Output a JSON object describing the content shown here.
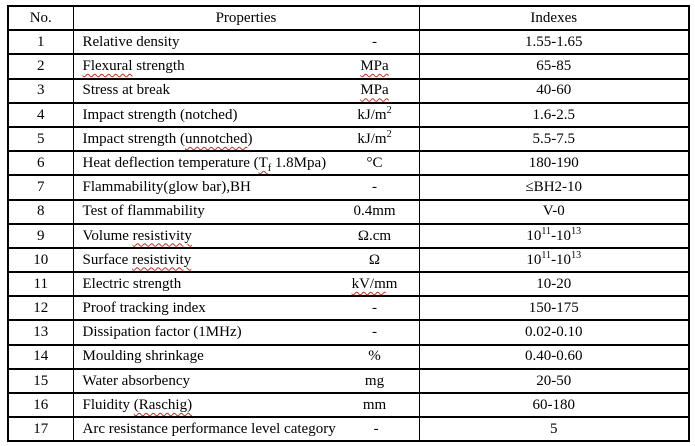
{
  "colors": {
    "border": "#000000",
    "text": "#000000",
    "spellcheck_squiggle": "#cc2a1e",
    "background": "#ffffff"
  },
  "table": {
    "headers": {
      "no": "No.",
      "properties": "Properties",
      "indexes": "Indexes"
    },
    "rows": [
      {
        "no": "1",
        "name": [
          {
            "t": "Relative density"
          }
        ],
        "unit": [
          {
            "t": "-"
          }
        ],
        "index": [
          {
            "t": "1.55-1.65"
          }
        ]
      },
      {
        "no": "2",
        "name": [
          {
            "t": "Flexural",
            "sq": true
          },
          {
            "t": " strength"
          }
        ],
        "unit": [
          {
            "t": "MPa",
            "sq": true
          }
        ],
        "index": [
          {
            "t": "65-85"
          }
        ]
      },
      {
        "no": "3",
        "name": [
          {
            "t": "Stress at break"
          }
        ],
        "unit": [
          {
            "t": "MPa",
            "sq": true
          }
        ],
        "index": [
          {
            "t": "40-60"
          }
        ]
      },
      {
        "no": "4",
        "name": [
          {
            "t": "Impact strength (notched)"
          }
        ],
        "unit": [
          {
            "t": "kJ/m"
          },
          {
            "t": "2",
            "sup": true
          }
        ],
        "index": [
          {
            "t": "1.6-2.5"
          }
        ]
      },
      {
        "no": "5",
        "name": [
          {
            "t": "Impact strength ("
          },
          {
            "t": "unnotched",
            "sq": true
          },
          {
            "t": ")"
          }
        ],
        "unit": [
          {
            "t": "kJ/m"
          },
          {
            "t": "2",
            "sup": true
          }
        ],
        "index": [
          {
            "t": "5.5-7.5"
          }
        ]
      },
      {
        "no": "6",
        "name": [
          {
            "t": "Heat deflection temperature ("
          },
          {
            "t": "T",
            "sq": true
          },
          {
            "t": "f",
            "sub": true,
            "sq": true
          },
          {
            "t": " 1.8Mpa)"
          }
        ],
        "unit": [
          {
            "t": "°C"
          }
        ],
        "index": [
          {
            "t": "180-190"
          }
        ]
      },
      {
        "no": "7",
        "name": [
          {
            "t": "Flammability(glow bar),BH"
          }
        ],
        "unit": [
          {
            "t": "-"
          }
        ],
        "index": [
          {
            "t": "≤BH2-10"
          }
        ]
      },
      {
        "no": "8",
        "name": [
          {
            "t": "Test of flammability"
          }
        ],
        "unit": [
          {
            "t": "0.4mm"
          }
        ],
        "index": [
          {
            "t": "V-0"
          }
        ]
      },
      {
        "no": "9",
        "name": [
          {
            "t": "Volume "
          },
          {
            "t": "resistivity",
            "sq": true
          }
        ],
        "unit": [
          {
            "t": "Ω.cm"
          }
        ],
        "index": [
          {
            "t": "10"
          },
          {
            "t": "11",
            "sup": true
          },
          {
            "t": "-10"
          },
          {
            "t": "13",
            "sup": true
          }
        ]
      },
      {
        "no": "10",
        "name": [
          {
            "t": "Surface "
          },
          {
            "t": "resistivity",
            "sq": true
          }
        ],
        "unit": [
          {
            "t": "Ω"
          }
        ],
        "index": [
          {
            "t": "10"
          },
          {
            "t": "11",
            "sup": true
          },
          {
            "t": "-10"
          },
          {
            "t": "13",
            "sup": true
          }
        ]
      },
      {
        "no": "11",
        "name": [
          {
            "t": "Electric strength"
          }
        ],
        "unit": [
          {
            "t": "kV/m",
            "sq": true
          },
          {
            "t": "m"
          }
        ],
        "index": [
          {
            "t": "10-20"
          }
        ]
      },
      {
        "no": "12",
        "name": [
          {
            "t": "Proof tracking index"
          }
        ],
        "unit": [
          {
            "t": "-"
          }
        ],
        "index": [
          {
            "t": "150-175"
          }
        ]
      },
      {
        "no": "13",
        "name": [
          {
            "t": "Dissipation factor (1MHz)"
          }
        ],
        "unit": [
          {
            "t": "-"
          }
        ],
        "index": [
          {
            "t": "0.02-0.10"
          }
        ]
      },
      {
        "no": "14",
        "name": [
          {
            "t": "Moulding shrinkage"
          }
        ],
        "unit": [
          {
            "t": "%"
          }
        ],
        "index": [
          {
            "t": "0.40-0.60"
          }
        ]
      },
      {
        "no": "15",
        "name": [
          {
            "t": "Water absorbency"
          }
        ],
        "unit": [
          {
            "t": "mg"
          }
        ],
        "index": [
          {
            "t": "20-50"
          }
        ]
      },
      {
        "no": "16",
        "name": [
          {
            "t": "Fluidity "
          },
          {
            "t": "(Raschig)",
            "sq": true
          }
        ],
        "unit": [
          {
            "t": "mm"
          }
        ],
        "index": [
          {
            "t": "60-180"
          }
        ]
      },
      {
        "no": "17",
        "name": [
          {
            "t": "Arc resistance performance level category"
          }
        ],
        "unit": [
          {
            "t": "-"
          }
        ],
        "index": [
          {
            "t": "5"
          }
        ]
      }
    ]
  }
}
